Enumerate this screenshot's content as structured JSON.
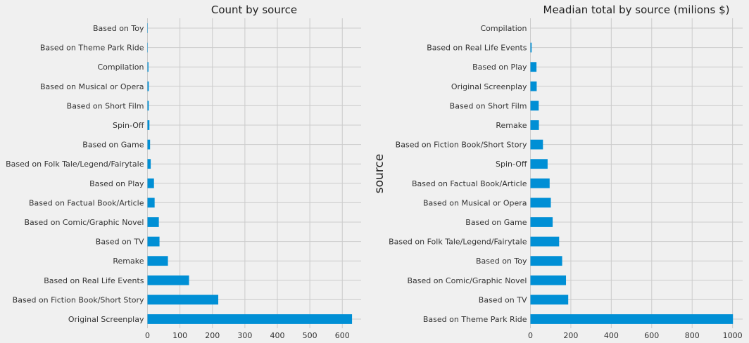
{
  "colors": {
    "bar": "#008fd5",
    "grid": "#cbcbcb",
    "background": "#f0f0f0"
  },
  "chart_data": [
    {
      "type": "bar",
      "orientation": "horizontal",
      "title": "Count by source",
      "ylabel": "",
      "xlim": [
        0,
        658
      ],
      "xticks": [
        0,
        100,
        200,
        300,
        400,
        500,
        600
      ],
      "categories": [
        "Original Screenplay",
        "Based on Fiction Book/Short Story",
        "Based on Real Life Events",
        "Remake",
        "Based on TV",
        "Based on Comic/Graphic Novel",
        "Based on Factual Book/Article",
        "Based on Play",
        "Based on Folk Tale/Legend/Fairytale",
        "Based on Game",
        "Spin-Off",
        "Based on Short Film",
        "Based on Musical or Opera",
        "Compilation",
        "Based on Theme Park Ride",
        "Based on Toy"
      ],
      "values": [
        630,
        218,
        128,
        63,
        37,
        35,
        22,
        20,
        10,
        8,
        6,
        4,
        4,
        3,
        1,
        1
      ],
      "grid": true
    },
    {
      "type": "bar",
      "orientation": "horizontal",
      "title": "Meadian total by source  (milions $)",
      "ylabel": "source",
      "xlim": [
        0,
        1050
      ],
      "xticks": [
        0,
        200,
        400,
        600,
        800,
        1000
      ],
      "categories": [
        "Based on Theme Park Ride",
        "Based on TV",
        "Based on Comic/Graphic Novel",
        "Based on Toy",
        "Based on Folk Tale/Legend/Fairytale",
        "Based on Game",
        "Based on Musical or Opera",
        "Based on Factual Book/Article",
        "Spin-Off",
        "Based on Fiction Book/Short Story",
        "Remake",
        "Based on Short Film",
        "Original Screenplay",
        "Based on Play",
        "Based on Real Life Events",
        "Compilation"
      ],
      "values": [
        1002,
        187,
        176,
        157,
        142,
        110,
        101,
        95,
        85,
        62,
        42,
        41,
        31,
        30,
        6,
        0
      ],
      "grid": true
    }
  ]
}
